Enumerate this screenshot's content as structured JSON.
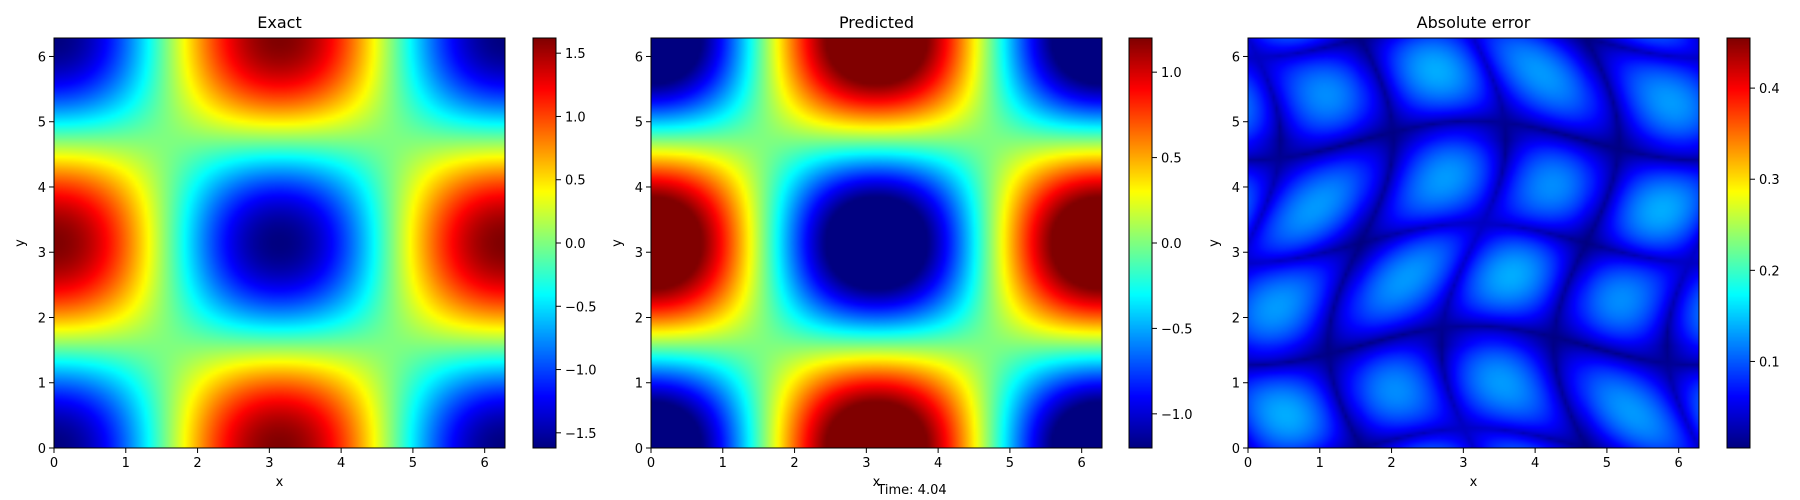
{
  "footer_text": "Time: 4.04",
  "chart_data": [
    {
      "type": "heatmap",
      "title": "Exact",
      "xlabel": "x",
      "ylabel": "y",
      "xlim": [
        0,
        6.283
      ],
      "ylim": [
        0,
        6.283
      ],
      "xticks": [
        0,
        1,
        2,
        3,
        4,
        5,
        6
      ],
      "yticks": [
        0,
        1,
        2,
        3,
        4,
        5,
        6
      ],
      "colormap": "jet",
      "field": "-1.62*cos(x)*cos(y)",
      "colorbar": {
        "range": [
          -1.62,
          1.62
        ],
        "ticks": [
          {
            "value": 1.5,
            "label": "1.5"
          },
          {
            "value": 1.0,
            "label": "1.0"
          },
          {
            "value": 0.5,
            "label": "0.5"
          },
          {
            "value": 0.0,
            "label": "0.0"
          },
          {
            "value": -0.5,
            "label": "−0.5"
          },
          {
            "value": -1.0,
            "label": "−1.0"
          },
          {
            "value": -1.5,
            "label": "−1.5"
          }
        ]
      }
    },
    {
      "type": "heatmap",
      "title": "Predicted",
      "xlabel": "x",
      "ylabel": "y",
      "xlim": [
        0,
        6.283
      ],
      "ylim": [
        0,
        6.283
      ],
      "xticks": [
        0,
        1,
        2,
        3,
        4,
        5,
        6
      ],
      "yticks": [
        0,
        1,
        2,
        3,
        4,
        5,
        6
      ],
      "colormap": "jet",
      "field": "-1.58*cos(x)*cos(y)",
      "colorbar": {
        "range": [
          -1.2,
          1.2
        ],
        "ticks": [
          {
            "value": 1.0,
            "label": "1.0"
          },
          {
            "value": 0.5,
            "label": "0.5"
          },
          {
            "value": 0.0,
            "label": "0.0"
          },
          {
            "value": -0.5,
            "label": "−0.5"
          },
          {
            "value": -1.0,
            "label": "−1.0"
          }
        ]
      }
    },
    {
      "type": "heatmap",
      "title": "Absolute error",
      "xlabel": "x",
      "ylabel": "y",
      "xlim": [
        0,
        6.283
      ],
      "ylim": [
        0,
        6.283
      ],
      "xticks": [
        0,
        1,
        2,
        3,
        4,
        5,
        6
      ],
      "yticks": [
        0,
        1,
        2,
        3,
        4,
        5,
        6
      ],
      "colormap": "jet",
      "field": "|exact - predicted|",
      "colorbar": {
        "range": [
          0.005,
          0.455
        ],
        "ticks": [
          {
            "value": 0.4,
            "label": "0.4"
          },
          {
            "value": 0.3,
            "label": "0.3"
          },
          {
            "value": 0.2,
            "label": "0.2"
          },
          {
            "value": 0.1,
            "label": "0.1"
          }
        ]
      }
    }
  ]
}
